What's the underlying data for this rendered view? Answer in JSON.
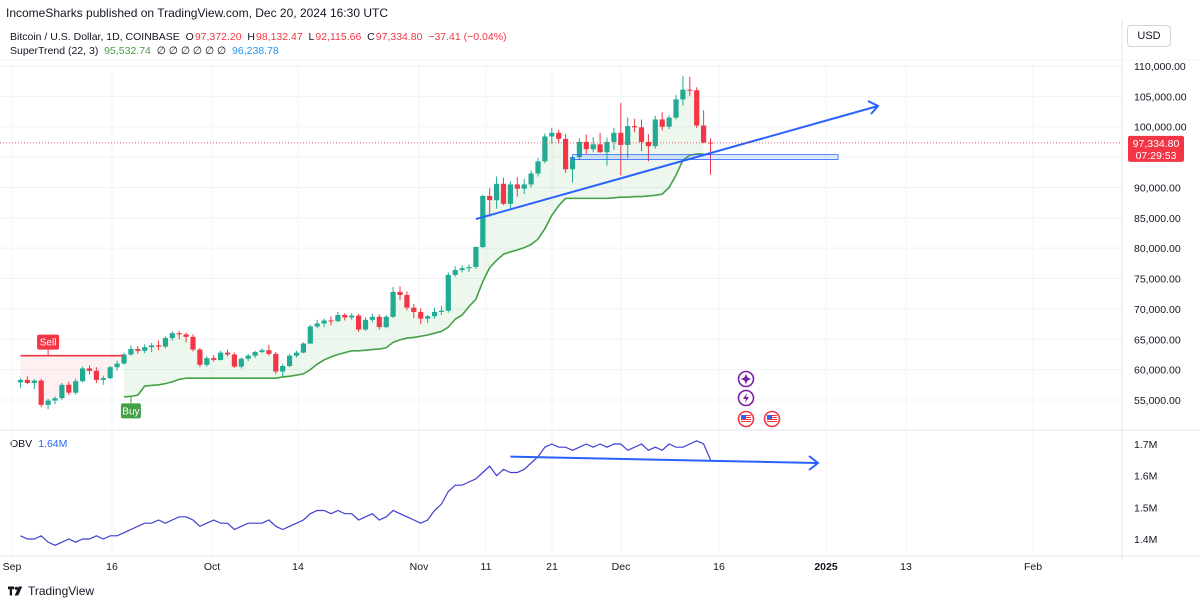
{
  "header": {
    "published": "IncomeSharks published on TradingView.com, Dec 20, 2024 16:30 UTC"
  },
  "legend": {
    "symbol": "Bitcoin / U.S. Dollar, 1D, COINBASE",
    "o_label": "O",
    "o": "97,372.20",
    "h_label": "H",
    "h": "98,132.47",
    "l_label": "L",
    "l": "92,115.66",
    "c_label": "C",
    "c": "97,334.80",
    "change": "−37.41 (−0.04%)",
    "supertrend_name": "SuperTrend (22, 3)",
    "supertrend_v1": "95,532.74",
    "supertrend_zeros": "∅ ∅ ∅ ∅ ∅ ∅",
    "supertrend_v2": "96,238.78"
  },
  "currency_button": "USD",
  "obv": {
    "name": "OBV",
    "value": "1.64M"
  },
  "footer": {
    "brand": "TradingView"
  },
  "price_tag": {
    "price": "97,334.80",
    "countdown": "07:29:53"
  },
  "signals": {
    "sell": "Sell",
    "buy": "Buy"
  },
  "colors": {
    "up": "#22ab94",
    "down": "#f23645",
    "supertrend": "#43a047",
    "trendline": "#2962ff",
    "obv": "#3f3fd2"
  },
  "chart_data": [
    {
      "type": "candlestick",
      "title": "Bitcoin / U.S. Dollar, 1D, COINBASE",
      "x_ticks": [
        "Sep",
        "16",
        "Oct",
        "14",
        "Nov",
        "11",
        "21",
        "Dec",
        "16",
        "2025",
        "13",
        "Feb"
      ],
      "y_ticks": [
        "55,000.00",
        "60,000.00",
        "65,000.00",
        "70,000.00",
        "75,000.00",
        "80,000.00",
        "85,000.00",
        "90,000.00",
        "95,000.00",
        "100,000.00",
        "105,000.00",
        "110,000.00"
      ],
      "ylim": [
        52000,
        111500
      ],
      "start_date": "2024-09-04",
      "ohlc": [
        [
          57900,
          58600,
          57000,
          58300
        ],
        [
          58300,
          58900,
          57600,
          57800
        ],
        [
          57800,
          58400,
          56800,
          58200
        ],
        [
          58200,
          58500,
          53800,
          54200
        ],
        [
          54200,
          55200,
          53500,
          54900
        ],
        [
          54900,
          55600,
          54300,
          55300
        ],
        [
          55300,
          57800,
          55000,
          57500
        ],
        [
          57500,
          58000,
          55800,
          56200
        ],
        [
          56200,
          58500,
          55900,
          58100
        ],
        [
          58100,
          60500,
          57900,
          60200
        ],
        [
          60200,
          60700,
          59200,
          59800
        ],
        [
          59800,
          60400,
          57800,
          58300
        ],
        [
          58300,
          59000,
          57500,
          58600
        ],
        [
          58600,
          60600,
          58400,
          60400
        ],
        [
          60400,
          61500,
          59800,
          61000
        ],
        [
          61000,
          62800,
          60800,
          62500
        ],
        [
          62500,
          64000,
          62300,
          63400
        ],
        [
          63400,
          63900,
          62600,
          63100
        ],
        [
          63100,
          64200,
          62700,
          63700
        ],
        [
          63700,
          64400,
          62900,
          64000
        ],
        [
          64000,
          64800,
          63200,
          63800
        ],
        [
          63800,
          65500,
          63500,
          65200
        ],
        [
          65200,
          66300,
          64800,
          66000
        ],
        [
          66000,
          66400,
          65000,
          65800
        ],
        [
          65800,
          66100,
          64500,
          65400
        ],
        [
          65400,
          65800,
          63000,
          63300
        ],
        [
          63300,
          63600,
          60400,
          60800
        ],
        [
          60800,
          62200,
          60500,
          61900
        ],
        [
          61900,
          62400,
          61300,
          61600
        ],
        [
          61600,
          63100,
          61500,
          62800
        ],
        [
          62800,
          63300,
          62200,
          62500
        ],
        [
          62500,
          62800,
          60300,
          60500
        ],
        [
          60500,
          62000,
          60200,
          61800
        ],
        [
          61800,
          62600,
          61400,
          62300
        ],
        [
          62300,
          63100,
          61900,
          62900
        ],
        [
          62900,
          63500,
          62700,
          63200
        ],
        [
          63200,
          64100,
          62300,
          62600
        ],
        [
          62600,
          62900,
          59300,
          59700
        ],
        [
          59700,
          61000,
          58900,
          60600
        ],
        [
          60600,
          62600,
          60400,
          62300
        ],
        [
          62300,
          63100,
          62000,
          62800
        ],
        [
          62800,
          64500,
          62700,
          64300
        ],
        [
          64300,
          67400,
          64200,
          67100
        ],
        [
          67100,
          68200,
          66800,
          67600
        ],
        [
          67600,
          68400,
          67000,
          68100
        ],
        [
          68100,
          68800,
          67300,
          68000
        ],
        [
          68000,
          69500,
          67800,
          69000
        ],
        [
          69000,
          69300,
          68100,
          68600
        ],
        [
          68600,
          69300,
          68200,
          68900
        ],
        [
          68900,
          69200,
          66200,
          66600
        ],
        [
          66600,
          68600,
          66400,
          68200
        ],
        [
          68200,
          69200,
          67800,
          68700
        ],
        [
          68700,
          69100,
          66600,
          67000
        ],
        [
          67000,
          69000,
          66800,
          68700
        ],
        [
          68700,
          73600,
          68500,
          72800
        ],
        [
          72800,
          73700,
          71500,
          72300
        ],
        [
          72300,
          72900,
          69800,
          70200
        ],
        [
          70200,
          70800,
          68500,
          69500
        ],
        [
          69500,
          70100,
          67500,
          68400
        ],
        [
          68400,
          69000,
          67700,
          68800
        ],
        [
          68800,
          70200,
          68400,
          69500
        ],
        [
          69500,
          70500,
          69000,
          69700
        ],
        [
          69700,
          76000,
          69400,
          75600
        ],
        [
          75600,
          77000,
          75300,
          76400
        ],
        [
          76400,
          77200,
          76000,
          76700
        ],
        [
          76700,
          77300,
          76100,
          76900
        ],
        [
          76900,
          80300,
          76600,
          80200
        ],
        [
          80200,
          88800,
          80000,
          88600
        ],
        [
          88600,
          89900,
          85200,
          87900
        ],
        [
          87900,
          91800,
          86500,
          90600
        ],
        [
          90600,
          91600,
          87100,
          87300
        ],
        [
          87300,
          91000,
          86600,
          90500
        ],
        [
          90500,
          91700,
          88500,
          89800
        ],
        [
          89800,
          91400,
          88900,
          90500
        ],
        [
          90500,
          92800,
          90000,
          92300
        ],
        [
          92300,
          94900,
          91800,
          94300
        ],
        [
          94300,
          98900,
          94000,
          98400
        ],
        [
          98400,
          99800,
          97200,
          99000
        ],
        [
          99000,
          99500,
          97300,
          98000
        ],
        [
          98000,
          98800,
          92400,
          93000
        ],
        [
          93000,
          95100,
          90800,
          95000
        ],
        [
          95000,
          98100,
          94500,
          97500
        ],
        [
          97500,
          98700,
          95500,
          96300
        ],
        [
          96300,
          98300,
          95800,
          97100
        ],
        [
          97100,
          99000,
          95700,
          95800
        ],
        [
          95800,
          98200,
          93600,
          97500
        ],
        [
          97500,
          99800,
          96200,
          99000
        ],
        [
          99000,
          103900,
          92000,
          97000
        ],
        [
          97000,
          101500,
          94800,
          100100
        ],
        [
          100100,
          101300,
          99100,
          99900
        ],
        [
          99900,
          101200,
          96000,
          97500
        ],
        [
          97500,
          98800,
          94300,
          96800
        ],
        [
          96800,
          101800,
          96400,
          101200
        ],
        [
          101200,
          102400,
          99400,
          100000
        ],
        [
          100000,
          101900,
          99600,
          101500
        ],
        [
          101500,
          105200,
          101200,
          104500
        ],
        [
          104500,
          108300,
          103500,
          106100
        ],
        [
          106100,
          108200,
          105100,
          106000
        ],
        [
          106000,
          106500,
          99800,
          100200
        ],
        [
          100200,
          102700,
          97300,
          97400
        ],
        [
          97400,
          98100,
          92100,
          97300
        ]
      ],
      "supertrend_sell": [
        [
          0,
          62300
        ],
        [
          15,
          62300
        ]
      ],
      "supertrend_buy": [
        [
          15,
          55500
        ],
        [
          16,
          55600
        ],
        [
          17,
          55800
        ],
        [
          18,
          57300
        ],
        [
          19,
          57400
        ],
        [
          20,
          57500
        ],
        [
          21,
          57700
        ],
        [
          22,
          58000
        ],
        [
          23,
          58400
        ],
        [
          24,
          58600
        ],
        [
          25,
          58600
        ],
        [
          26,
          58600
        ],
        [
          27,
          58600
        ],
        [
          28,
          58600
        ],
        [
          29,
          58600
        ],
        [
          30,
          58600
        ],
        [
          31,
          58600
        ],
        [
          32,
          58600
        ],
        [
          33,
          58600
        ],
        [
          34,
          58600
        ],
        [
          35,
          58600
        ],
        [
          36,
          58600
        ],
        [
          37,
          58600
        ],
        [
          38,
          58800
        ],
        [
          39,
          58900
        ],
        [
          40,
          59100
        ],
        [
          41,
          59300
        ],
        [
          42,
          60000
        ],
        [
          43,
          60900
        ],
        [
          44,
          61600
        ],
        [
          45,
          62100
        ],
        [
          46,
          62500
        ],
        [
          47,
          62800
        ],
        [
          48,
          63100
        ],
        [
          49,
          63100
        ],
        [
          50,
          63200
        ],
        [
          51,
          63300
        ],
        [
          52,
          63400
        ],
        [
          53,
          63600
        ],
        [
          54,
          64500
        ],
        [
          55,
          64900
        ],
        [
          56,
          65200
        ],
        [
          57,
          65300
        ],
        [
          58,
          65500
        ],
        [
          59,
          65700
        ],
        [
          60,
          66000
        ],
        [
          61,
          66300
        ],
        [
          62,
          67000
        ],
        [
          63,
          68300
        ],
        [
          64,
          69000
        ],
        [
          65,
          70400
        ],
        [
          66,
          71600
        ],
        [
          67,
          74500
        ],
        [
          68,
          76800
        ],
        [
          69,
          78000
        ],
        [
          70,
          79000
        ],
        [
          71,
          79400
        ],
        [
          72,
          79700
        ],
        [
          73,
          80100
        ],
        [
          74,
          80600
        ],
        [
          75,
          81500
        ],
        [
          76,
          83200
        ],
        [
          77,
          85400
        ],
        [
          78,
          87000
        ],
        [
          79,
          88200
        ],
        [
          80,
          88200
        ],
        [
          81,
          88200
        ],
        [
          82,
          88200
        ],
        [
          83,
          88200
        ],
        [
          84,
          88200
        ],
        [
          85,
          88200
        ],
        [
          86,
          88300
        ],
        [
          87,
          88400
        ],
        [
          88,
          88400
        ],
        [
          89,
          88500
        ],
        [
          90,
          88500
        ],
        [
          91,
          88600
        ],
        [
          92,
          88700
        ],
        [
          93,
          88900
        ],
        [
          94,
          90000
        ],
        [
          95,
          92000
        ],
        [
          96,
          94500
        ],
        [
          97,
          95300
        ],
        [
          98,
          95500
        ],
        [
          99,
          95500
        ]
      ],
      "trendline": [
        [
          66,
          84800
        ],
        [
          107,
          104000
        ]
      ],
      "support_zone": [
        [
          80,
          95400
        ],
        [
          104,
          94600
        ]
      ],
      "obv": {
        "y_ticks": [
          "1.7M",
          "1.6M",
          "1.5M",
          "1.4M"
        ],
        "ylim": [
          1.37,
          1.73
        ],
        "values": [
          1.41,
          1.4,
          1.4,
          1.41,
          1.39,
          1.38,
          1.39,
          1.4,
          1.39,
          1.4,
          1.4,
          1.41,
          1.4,
          1.41,
          1.41,
          1.42,
          1.43,
          1.44,
          1.45,
          1.45,
          1.46,
          1.45,
          1.46,
          1.47,
          1.47,
          1.46,
          1.44,
          1.45,
          1.46,
          1.45,
          1.45,
          1.43,
          1.44,
          1.45,
          1.45,
          1.45,
          1.46,
          1.44,
          1.43,
          1.44,
          1.45,
          1.46,
          1.48,
          1.49,
          1.49,
          1.48,
          1.49,
          1.48,
          1.48,
          1.46,
          1.47,
          1.48,
          1.46,
          1.47,
          1.49,
          1.48,
          1.47,
          1.46,
          1.45,
          1.46,
          1.49,
          1.51,
          1.55,
          1.57,
          1.57,
          1.58,
          1.59,
          1.61,
          1.63,
          1.6,
          1.62,
          1.61,
          1.61,
          1.62,
          1.64,
          1.66,
          1.69,
          1.7,
          1.69,
          1.69,
          1.68,
          1.69,
          1.7,
          1.69,
          1.7,
          1.69,
          1.7,
          1.7,
          1.68,
          1.69,
          1.7,
          1.68,
          1.69,
          1.68,
          1.7,
          1.69,
          1.69,
          1.7,
          1.71,
          1.7,
          1.65
        ],
        "trendline": [
          [
            71,
            1.66
          ],
          [
            110,
            1.64
          ]
        ]
      }
    }
  ]
}
